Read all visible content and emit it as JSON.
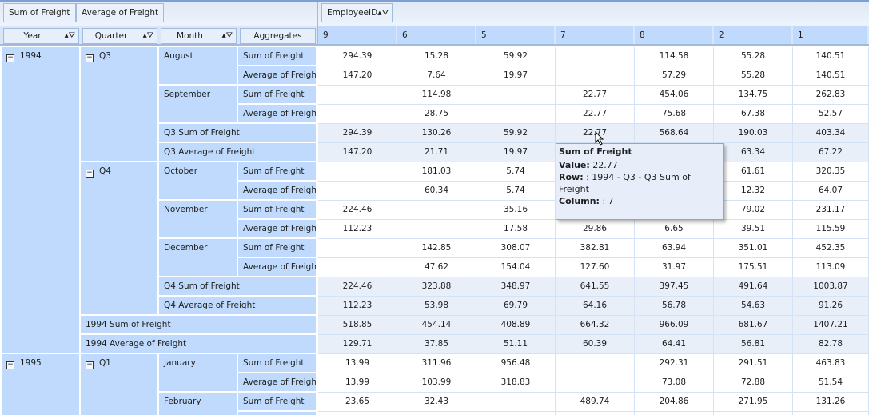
{
  "filter_area": {
    "data_fields": [
      "Sum of Freight",
      "Average of Freight"
    ],
    "column_field": "EmployeeID"
  },
  "row_fields": [
    "Year",
    "Quarter",
    "Month",
    "Aggregates"
  ],
  "columns": [
    "9",
    "6",
    "5",
    "7",
    "8",
    "2",
    "1"
  ],
  "rows": [
    {
      "y": "1994",
      "q": "Q3",
      "m": "August",
      "a": "Sum of Freight",
      "v": [
        "294.39",
        "15.28",
        "59.92",
        "",
        "114.58",
        "55.28",
        "140.51"
      ]
    },
    {
      "y": "1994",
      "q": "Q3",
      "m": "August",
      "a": "Average of Freigh",
      "v": [
        "147.20",
        "7.64",
        "19.97",
        "",
        "57.29",
        "55.28",
        "140.51"
      ]
    },
    {
      "y": "1994",
      "q": "Q3",
      "m": "September",
      "a": "Sum of Freight",
      "v": [
        "",
        "114.98",
        "",
        "22.77",
        "454.06",
        "134.75",
        "262.83"
      ]
    },
    {
      "y": "1994",
      "q": "Q3",
      "m": "September",
      "a": "Average of Freigh",
      "v": [
        "",
        "28.75",
        "",
        "22.77",
        "75.68",
        "67.38",
        "52.57"
      ]
    },
    {
      "y": "1994",
      "q": "Q3",
      "total": "Q3 Sum of Freight",
      "v": [
        "294.39",
        "130.26",
        "59.92",
        "22.77",
        "568.64",
        "190.03",
        "403.34"
      ]
    },
    {
      "y": "1994",
      "q": "Q3",
      "total": "Q3 Average of Freight",
      "v": [
        "147.20",
        "21.71",
        "19.97",
        "",
        "",
        "63.34",
        "67.22"
      ]
    },
    {
      "y": "1994",
      "q": "Q4",
      "m": "October",
      "a": "Sum of Freight",
      "v": [
        "",
        "181.03",
        "5.74",
        "",
        "",
        "61.61",
        "320.35"
      ]
    },
    {
      "y": "1994",
      "q": "Q4",
      "m": "October",
      "a": "Average of Freigh",
      "v": [
        "",
        "60.34",
        "5.74",
        "",
        "",
        "12.32",
        "64.07"
      ]
    },
    {
      "y": "1994",
      "q": "Q4",
      "m": "November",
      "a": "Sum of Freight",
      "v": [
        "224.46",
        "",
        "35.16",
        "",
        "",
        "79.02",
        "231.17"
      ]
    },
    {
      "y": "1994",
      "q": "Q4",
      "m": "November",
      "a": "Average of Freigh",
      "v": [
        "112.23",
        "",
        "17.58",
        "29.86",
        "6.65",
        "39.51",
        "115.59"
      ]
    },
    {
      "y": "1994",
      "q": "Q4",
      "m": "December",
      "a": "Sum of Freight",
      "v": [
        "",
        "142.85",
        "308.07",
        "382.81",
        "63.94",
        "351.01",
        "452.35"
      ]
    },
    {
      "y": "1994",
      "q": "Q4",
      "m": "December",
      "a": "Average of Freigh",
      "v": [
        "",
        "47.62",
        "154.04",
        "127.60",
        "31.97",
        "175.51",
        "113.09"
      ]
    },
    {
      "y": "1994",
      "q": "Q4",
      "total": "Q4 Sum of Freight",
      "v": [
        "224.46",
        "323.88",
        "348.97",
        "641.55",
        "397.45",
        "491.64",
        "1003.87"
      ]
    },
    {
      "y": "1994",
      "q": "Q4",
      "total": "Q4 Average of Freight",
      "v": [
        "112.23",
        "53.98",
        "69.79",
        "64.16",
        "56.78",
        "54.63",
        "91.26"
      ]
    },
    {
      "y": "1994",
      "total": "1994 Sum of Freight",
      "v": [
        "518.85",
        "454.14",
        "408.89",
        "664.32",
        "966.09",
        "681.67",
        "1407.21"
      ]
    },
    {
      "y": "1994",
      "total": "1994 Average of Freight",
      "v": [
        "129.71",
        "37.85",
        "51.11",
        "60.39",
        "64.41",
        "56.81",
        "82.78"
      ]
    },
    {
      "y": "1995",
      "q": "Q1",
      "m": "January",
      "a": "Sum of Freight",
      "v": [
        "13.99",
        "311.96",
        "956.48",
        "",
        "292.31",
        "291.51",
        "463.83"
      ]
    },
    {
      "y": "1995",
      "q": "Q1",
      "m": "January",
      "a": "Average of Freigh",
      "v": [
        "13.99",
        "103.99",
        "318.83",
        "",
        "73.08",
        "72.88",
        "51.54"
      ]
    },
    {
      "y": "1995",
      "q": "Q1",
      "m": "February",
      "a": "Sum of Freight",
      "v": [
        "23.65",
        "32.43",
        "",
        "489.74",
        "204.86",
        "271.95",
        "131.26"
      ]
    },
    {
      "y": "1995",
      "q": "Q1",
      "m": "February",
      "a": "",
      "v": [
        "",
        "",
        "",
        "",
        "",
        "",
        ""
      ]
    }
  ],
  "tooltip": {
    "title": "Sum of Freight",
    "value_label": "Value:",
    "value": "22.77",
    "row_label": "Row:",
    "row": ": 1994 - Q3 - Q3 Sum of Freight",
    "column_label": "Column:",
    "column": ": 7"
  }
}
